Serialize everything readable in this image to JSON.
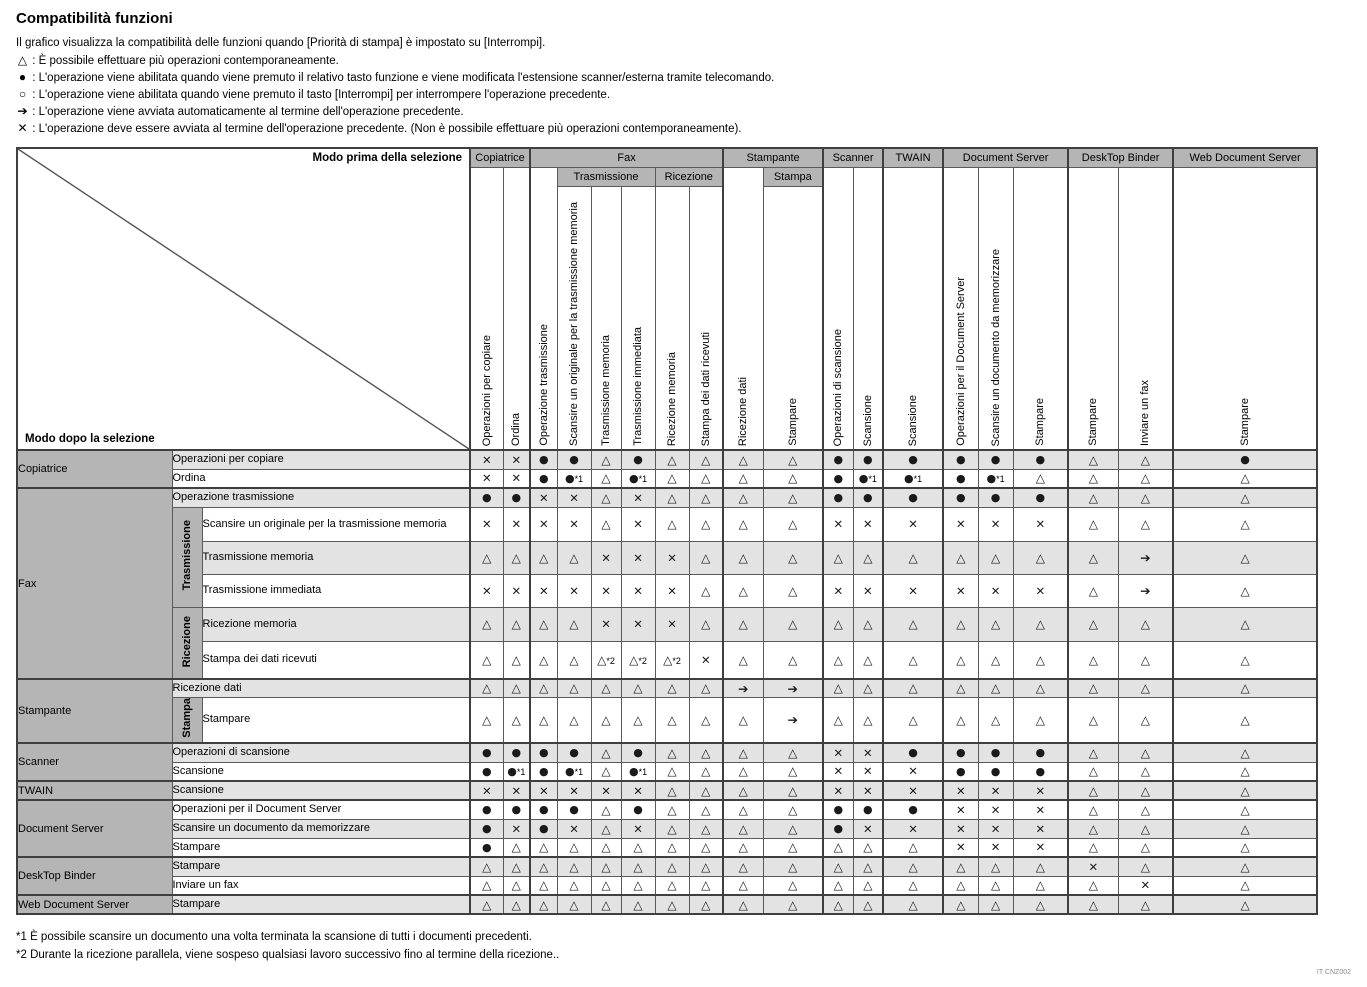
{
  "page": {
    "title": "Compatibilità funzioni",
    "intro": "Il grafico visualizza la compatibilità delle funzioni quando [Priorità di stampa] è impostato su [Interrompi].",
    "legend_separator": " : ",
    "legend": [
      {
        "symbol": "△",
        "kind": "triangle",
        "text": "È possibile effettuare più operazioni contemporaneamente."
      },
      {
        "symbol": "●",
        "kind": "circle-filled",
        "text": "L'operazione viene abilitata quando viene premuto il relativo tasto funzione e viene modificata l'estensione scanner/esterna tramite telecomando."
      },
      {
        "symbol": "○",
        "kind": "circle-open",
        "text": "L'operazione viene abilitata quando viene premuto il tasto [Interrompi] per interrompere l'operazione precedente."
      },
      {
        "symbol": "➔",
        "kind": "arrow",
        "text": "L'operazione viene avviata automaticamente al termine dell'operazione precedente."
      },
      {
        "symbol": "✕",
        "kind": "cross",
        "text": "L'operazione deve essere avviata al termine dell'operazione precedente. (Non è possibile effettuare più operazioni contemporaneamente)."
      }
    ],
    "footnotes": [
      "*1 È possibile scansire un documento una volta terminata la scansione di tutti i documenti precedenti.",
      "*2 Durante la ricezione parallela, viene sospeso qualsiasi lavoro successivo fino al termine della ricezione.."
    ],
    "doc_code": "IT CNZ002",
    "colors": {
      "header_gray": "#b5b5b5",
      "stripe_gray": "#e3e3e3",
      "border": "#3f3f3f"
    }
  },
  "table": {
    "corner": {
      "top_label": "Modo prima della selezione",
      "bottom_label": "Modo dopo la selezione"
    },
    "header": {
      "groups": [
        {
          "label": "Copiatrice",
          "span": 2
        },
        {
          "label": "Fax",
          "span": 6
        },
        {
          "label": "Stampante",
          "span": 2
        },
        {
          "label": "Scanner",
          "span": 2
        },
        {
          "label": "TWAIN",
          "span": 1
        },
        {
          "label": "Document Server",
          "span": 3
        },
        {
          "label": "DeskTop Binder",
          "span": 2
        },
        {
          "label": "Web Document Server",
          "span": 1
        }
      ],
      "subgroups": [
        {
          "label": "Trasmissione",
          "start": 3,
          "span": 3
        },
        {
          "label": "Ricezione",
          "start": 6,
          "span": 2
        },
        {
          "label": "Stampa",
          "start": 9,
          "span": 1
        }
      ],
      "columns": [
        "Operazioni per copiare",
        "Ordina",
        "Operazione trasmissione",
        "Scansire un originale per la trasmissione memoria",
        "Trasmissione memoria",
        "Trasmissione immediata",
        "Ricezione memoria",
        "Stampa dei dati ricevuti",
        "Ricezione dati",
        "Stampare",
        "Operazioni di scansione",
        "Scansione",
        "Scansione",
        "Operazioni per il Document Server",
        "Scansire un documento da memorizzare",
        "Stampare",
        "Stampare",
        "Inviare un fax",
        "Stampare"
      ]
    },
    "rows": [
      {
        "group": "Copiatrice",
        "groupSpan": 2,
        "label": "Operazioni per copiare",
        "labelSpan": 2,
        "cells": [
          "✕",
          "✕",
          "●",
          "●",
          "△",
          "●",
          "△",
          "△",
          "△",
          "△",
          "●",
          "●",
          "●",
          "●",
          "●",
          "●",
          "△",
          "△",
          "●"
        ]
      },
      {
        "label": "Ordina",
        "labelSpan": 2,
        "cells": [
          "✕",
          "✕",
          "●",
          "●*1",
          "△",
          "●*1",
          "△",
          "△",
          "△",
          "△",
          "●",
          "●*1",
          "●*1",
          "●",
          "●*1",
          "△",
          "△",
          "△",
          "△"
        ]
      },
      {
        "group": "Fax",
        "groupSpan": 6,
        "label": "Operazione trasmissione",
        "labelSpan": 2,
        "cells": [
          "●",
          "●",
          "✕",
          "✕",
          "△",
          "✕",
          "△",
          "△",
          "△",
          "△",
          "●",
          "●",
          "●",
          "●",
          "●",
          "●",
          "△",
          "△",
          "△"
        ]
      },
      {
        "sub": "Trasmissione",
        "subSpan": 3,
        "label": "Scansire un originale per la trasmissione memoria",
        "labelSpan": 1,
        "cells": [
          "✕",
          "✕",
          "✕",
          "✕",
          "△",
          "✕",
          "△",
          "△",
          "△",
          "△",
          "✕",
          "✕",
          "✕",
          "✕",
          "✕",
          "✕",
          "△",
          "△",
          "△"
        ]
      },
      {
        "label": "Trasmissione memoria",
        "labelSpan": 1,
        "cells": [
          "△",
          "△",
          "△",
          "△",
          "✕",
          "✕",
          "✕",
          "△",
          "△",
          "△",
          "△",
          "△",
          "△",
          "△",
          "△",
          "△",
          "△",
          "➔",
          "△"
        ]
      },
      {
        "label": "Trasmissione immediata",
        "labelSpan": 1,
        "cells": [
          "✕",
          "✕",
          "✕",
          "✕",
          "✕",
          "✕",
          "✕",
          "△",
          "△",
          "△",
          "✕",
          "✕",
          "✕",
          "✕",
          "✕",
          "✕",
          "△",
          "➔",
          "△"
        ]
      },
      {
        "sub": "Ricezione",
        "subSpan": 2,
        "label": "Ricezione memoria",
        "labelSpan": 1,
        "cells": [
          "△",
          "△",
          "△",
          "△",
          "✕",
          "✕",
          "✕",
          "△",
          "△",
          "△",
          "△",
          "△",
          "△",
          "△",
          "△",
          "△",
          "△",
          "△",
          "△"
        ]
      },
      {
        "label": "Stampa dei dati ricevuti",
        "labelSpan": 1,
        "cells": [
          "△",
          "△",
          "△",
          "△",
          "△*2",
          "△*2",
          "△*2",
          "✕",
          "△",
          "△",
          "△",
          "△",
          "△",
          "△",
          "△",
          "△",
          "△",
          "△",
          "△"
        ]
      },
      {
        "group": "Stampante",
        "groupSpan": 2,
        "label": "Ricezione dati",
        "labelSpan": 2,
        "cells": [
          "△",
          "△",
          "△",
          "△",
          "△",
          "△",
          "△",
          "△",
          "➔",
          "➔",
          "△",
          "△",
          "△",
          "△",
          "△",
          "△",
          "△",
          "△",
          "△"
        ]
      },
      {
        "sub": "Stampa",
        "subSpan": 1,
        "label": "Stampare",
        "labelSpan": 1,
        "cells": [
          "△",
          "△",
          "△",
          "△",
          "△",
          "△",
          "△",
          "△",
          "△",
          "➔",
          "△",
          "△",
          "△",
          "△",
          "△",
          "△",
          "△",
          "△",
          "△"
        ]
      },
      {
        "group": "Scanner",
        "groupSpan": 2,
        "label": "Operazioni di scansione",
        "labelSpan": 2,
        "cells": [
          "●",
          "●",
          "●",
          "●",
          "△",
          "●",
          "△",
          "△",
          "△",
          "△",
          "✕",
          "✕",
          "●",
          "●",
          "●",
          "●",
          "△",
          "△",
          "△"
        ]
      },
      {
        "label": "Scansione",
        "labelSpan": 2,
        "cells": [
          "●",
          "●*1",
          "●",
          "●*1",
          "△",
          "●*1",
          "△",
          "△",
          "△",
          "△",
          "✕",
          "✕",
          "✕",
          "●",
          "●",
          "●",
          "△",
          "△",
          "△"
        ]
      },
      {
        "group": "TWAIN",
        "groupSpan": 1,
        "label": "Scansione",
        "labelSpan": 2,
        "cells": [
          "✕",
          "✕",
          "✕",
          "✕",
          "✕",
          "✕",
          "△",
          "△",
          "△",
          "△",
          "✕",
          "✕",
          "✕",
          "✕",
          "✕",
          "✕",
          "△",
          "△",
          "△"
        ]
      },
      {
        "group": "Document Server",
        "groupSpan": 3,
        "label": "Operazioni per il Document Server",
        "labelSpan": 2,
        "cells": [
          "●",
          "●",
          "●",
          "●",
          "△",
          "●",
          "△",
          "△",
          "△",
          "△",
          "●",
          "●",
          "●",
          "✕",
          "✕",
          "✕",
          "△",
          "△",
          "△"
        ]
      },
      {
        "label": "Scansire un documento da memorizzare",
        "labelSpan": 2,
        "cells": [
          "●",
          "✕",
          "●",
          "✕",
          "△",
          "✕",
          "△",
          "△",
          "△",
          "△",
          "●",
          "✕",
          "✕",
          "✕",
          "✕",
          "✕",
          "△",
          "△",
          "△"
        ]
      },
      {
        "label": "Stampare",
        "labelSpan": 2,
        "cells": [
          "●",
          "△",
          "△",
          "△",
          "△",
          "△",
          "△",
          "△",
          "△",
          "△",
          "△",
          "△",
          "△",
          "✕",
          "✕",
          "✕",
          "△",
          "△",
          "△"
        ]
      },
      {
        "group": "DeskTop Binder",
        "groupSpan": 2,
        "label": "Stampare",
        "labelSpan": 2,
        "cells": [
          "△",
          "△",
          "△",
          "△",
          "△",
          "△",
          "△",
          "△",
          "△",
          "△",
          "△",
          "△",
          "△",
          "△",
          "△",
          "△",
          "✕",
          "△",
          "△"
        ]
      },
      {
        "label": "Inviare un fax",
        "labelSpan": 2,
        "cells": [
          "△",
          "△",
          "△",
          "△",
          "△",
          "△",
          "△",
          "△",
          "△",
          "△",
          "△",
          "△",
          "△",
          "△",
          "△",
          "△",
          "△",
          "✕",
          "△"
        ]
      },
      {
        "group": "Web Document Server",
        "groupSpan": 1,
        "label": "Stampare",
        "labelSpan": 2,
        "cells": [
          "△",
          "△",
          "△",
          "△",
          "△",
          "△",
          "△",
          "△",
          "△",
          "△",
          "△",
          "△",
          "△",
          "△",
          "△",
          "△",
          "△",
          "△",
          "△"
        ]
      }
    ]
  }
}
